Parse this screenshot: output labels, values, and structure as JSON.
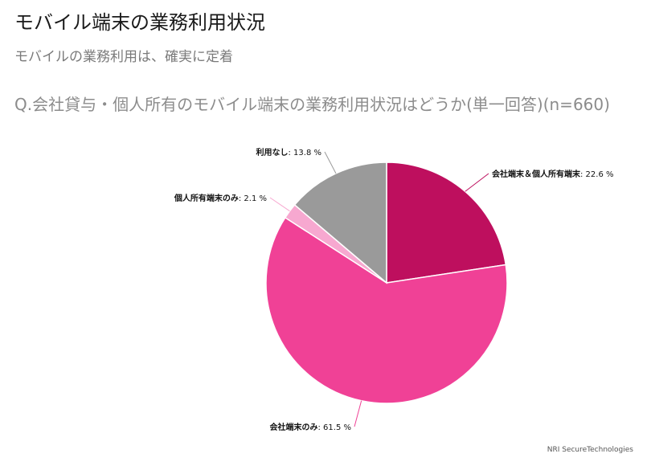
{
  "header": {
    "title": "モバイル端末の業務利用状況",
    "subtitle": "モバイルの業務利用は、確実に定着",
    "question": "Q.会社貸与・個人所有のモバイル端末の業務利用状況はどうか(単一回答)(n=660)"
  },
  "source": "NRI SecureTechnologies",
  "chart_data": {
    "type": "pie",
    "title": "",
    "slices": [
      {
        "label": "会社端末＆個人所有端末",
        "value": 22.6,
        "value_text": "22.6 %",
        "color": "#be0f5e"
      },
      {
        "label": "会社端末のみ",
        "value": 61.5,
        "value_text": "61.5 %",
        "color": "#f04196"
      },
      {
        "label": "個人所有端末のみ",
        "value": 2.1,
        "value_text": "2.1 %",
        "color": "#f7a8d0"
      },
      {
        "label": "利用なし",
        "value": 13.8,
        "value_text": "13.8 %",
        "color": "#9a9a9a"
      }
    ],
    "start_angle": "12 o'clock",
    "direction": "clockwise",
    "legend": "none"
  }
}
